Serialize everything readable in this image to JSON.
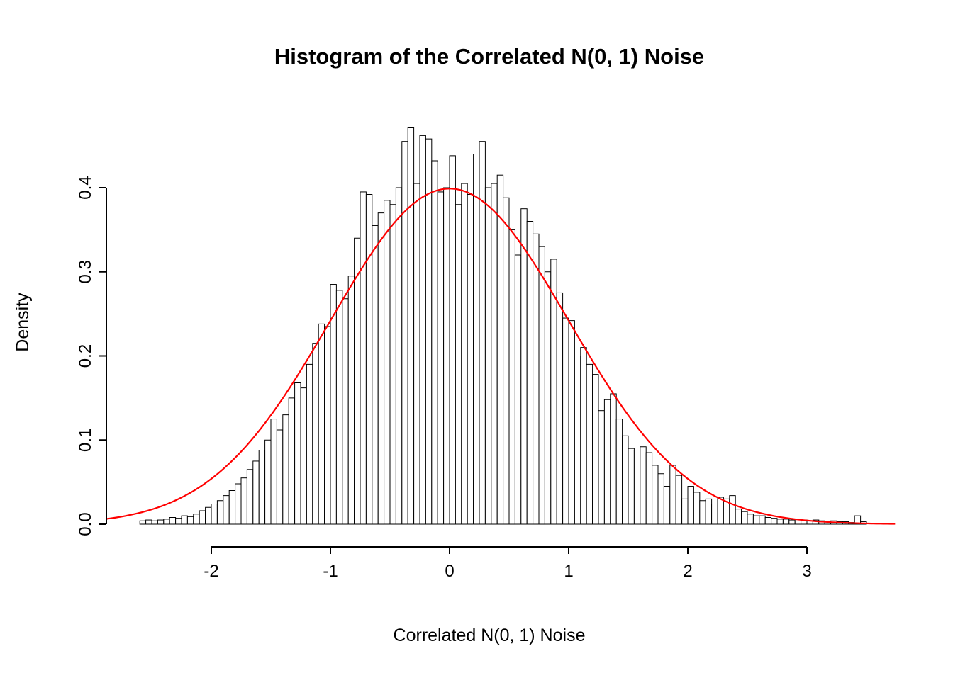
{
  "chart_data": {
    "type": "bar",
    "subtype": "histogram-with-density-curve",
    "title": "Histogram of the Correlated N(0, 1) Noise",
    "xlabel": "Correlated N(0, 1) Noise",
    "ylabel": "Density",
    "grid": false,
    "legend": "none",
    "bin_start": -2.6,
    "bin_width": 0.05,
    "densities": [
      0.004,
      0.005,
      0.004,
      0.005,
      0.006,
      0.008,
      0.007,
      0.01,
      0.009,
      0.012,
      0.016,
      0.02,
      0.024,
      0.028,
      0.034,
      0.04,
      0.048,
      0.055,
      0.065,
      0.075,
      0.088,
      0.1,
      0.125,
      0.112,
      0.13,
      0.15,
      0.168,
      0.162,
      0.19,
      0.215,
      0.238,
      0.235,
      0.285,
      0.278,
      0.268,
      0.295,
      0.34,
      0.395,
      0.392,
      0.355,
      0.37,
      0.385,
      0.38,
      0.4,
      0.455,
      0.472,
      0.405,
      0.462,
      0.458,
      0.432,
      0.395,
      0.4,
      0.438,
      0.38,
      0.405,
      0.392,
      0.44,
      0.455,
      0.4,
      0.405,
      0.415,
      0.388,
      0.35,
      0.32,
      0.375,
      0.36,
      0.345,
      0.33,
      0.3,
      0.315,
      0.275,
      0.245,
      0.242,
      0.2,
      0.21,
      0.19,
      0.178,
      0.135,
      0.148,
      0.155,
      0.125,
      0.105,
      0.09,
      0.088,
      0.092,
      0.085,
      0.07,
      0.06,
      0.045,
      0.07,
      0.058,
      0.03,
      0.045,
      0.038,
      0.028,
      0.03,
      0.024,
      0.032,
      0.03,
      0.034,
      0.018,
      0.015,
      0.012,
      0.01,
      0.01,
      0.008,
      0.007,
      0.006,
      0.006,
      0.005,
      0.006,
      0.005,
      0.004,
      0.005,
      0.004,
      0.003,
      0.004,
      0.003,
      0.003,
      0.002,
      0.01,
      0.003
    ],
    "xticks": [
      -2,
      -1,
      0,
      1,
      2,
      3
    ],
    "xtick_labels": [
      "-2",
      "-1",
      "0",
      "1",
      "2",
      "3"
    ],
    "yticks": [
      0.0,
      0.1,
      0.2,
      0.3,
      0.4
    ],
    "ytick_labels": [
      "0.0",
      "0.1",
      "0.2",
      "0.3",
      "0.4"
    ],
    "xlim": [
      -2.88,
      3.74
    ],
    "ylim": [
      0,
      0.47
    ],
    "curve": {
      "type": "normal-density",
      "mean": 0,
      "sd": 1,
      "color": "#ff0000"
    },
    "bar_fill": "#ffffff",
    "bar_stroke": "#000000",
    "axis_color": "#000000",
    "background_color": "#ffffff"
  }
}
